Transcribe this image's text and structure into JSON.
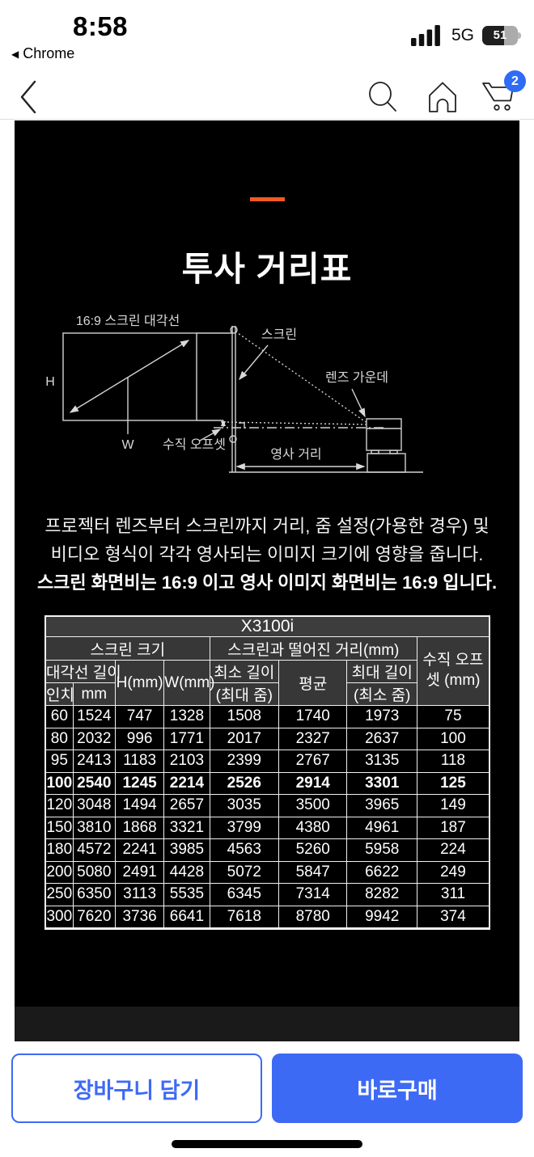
{
  "colors": {
    "accent_orange": "#f15a24",
    "accent_blue": "#3d6af5",
    "badge_blue": "#2f6cf6",
    "panel_bg": "#000000",
    "strip_bg": "#1a1a1a",
    "table_header_bg": "#373737",
    "table_model_bg": "#3d3d3d"
  },
  "status_bar": {
    "time": "8:58",
    "back_app": "Chrome",
    "network": "5G",
    "battery_percent": "51"
  },
  "nav": {
    "cart_badge": "2"
  },
  "content": {
    "title": "투사 거리표",
    "description_line1": "프로젝터 렌즈부터 스크린까지 거리, 줌 설정(가용한 경우) 및",
    "description_line2": "비디오 형식이 각각 영사되는 이미지 크기에 영향을 줍니다.",
    "description_line3": "스크린 화면비는 16:9 이고 영사 이미지 화면비는 16:9 입니다."
  },
  "diagram": {
    "diagonal_label": "16:9 스크린 대각선",
    "screen_label": "스크린",
    "lens_label": "렌즈 가운데",
    "h_label": "H",
    "w_label": "W",
    "offset_label": "수직 오프셋",
    "distance_label": "영사 거리"
  },
  "table": {
    "model": "X3100i",
    "group_screen": "스크린 크기",
    "group_distance": "스크린과 떨어진 거리(mm)",
    "vertical_offset": "수직 오프셋 (mm)",
    "diagonal": "대각선 길이",
    "h": "H(mm)",
    "w": "W(mm)",
    "min_len": "최소 길이",
    "min_sub": "(최대 줌)",
    "avg": "평균",
    "max_len": "최대 길이",
    "max_sub": "(최소 줌)",
    "inch": "인치",
    "mm": "mm",
    "bold_row_index": 3,
    "rows": [
      [
        "60",
        "1524",
        "747",
        "1328",
        "1508",
        "1740",
        "1973",
        "75"
      ],
      [
        "80",
        "2032",
        "996",
        "1771",
        "2017",
        "2327",
        "2637",
        "100"
      ],
      [
        "95",
        "2413",
        "1183",
        "2103",
        "2399",
        "2767",
        "3135",
        "118"
      ],
      [
        "100",
        "2540",
        "1245",
        "2214",
        "2526",
        "2914",
        "3301",
        "125"
      ],
      [
        "120",
        "3048",
        "1494",
        "2657",
        "3035",
        "3500",
        "3965",
        "149"
      ],
      [
        "150",
        "3810",
        "1868",
        "3321",
        "3799",
        "4380",
        "4961",
        "187"
      ],
      [
        "180",
        "4572",
        "2241",
        "3985",
        "4563",
        "5260",
        "5958",
        "224"
      ],
      [
        "200",
        "5080",
        "2491",
        "4428",
        "5072",
        "5847",
        "6622",
        "249"
      ],
      [
        "250",
        "6350",
        "3113",
        "5535",
        "6345",
        "7314",
        "8282",
        "311"
      ],
      [
        "300",
        "7620",
        "3736",
        "6641",
        "7618",
        "8780",
        "9942",
        "374"
      ]
    ]
  },
  "actions": {
    "add_to_cart": "장바구니 담기",
    "buy_now": "바로구매"
  }
}
